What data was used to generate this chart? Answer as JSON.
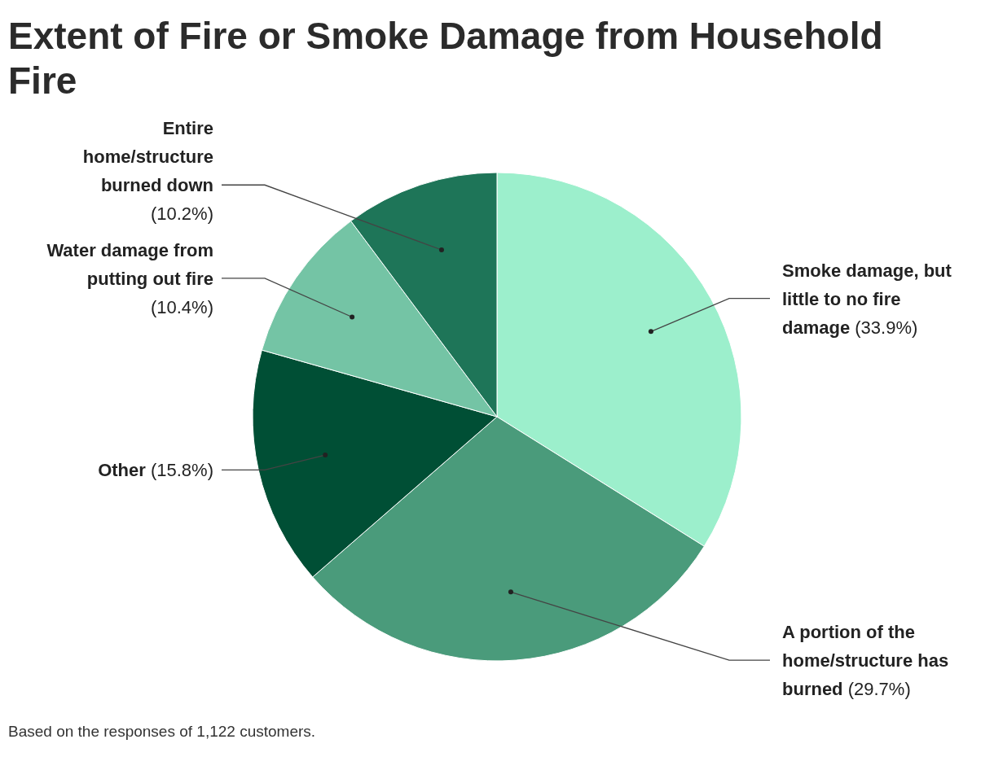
{
  "chart_data": {
    "type": "pie",
    "title": "Extent of Fire or Smoke Damage from Household Fire",
    "categories": [
      "Smoke damage, but little to no fire damage",
      "A portion of the home/structure has burned",
      "Other",
      "Water damage from putting out fire",
      "Entire home/structure burned down"
    ],
    "values": [
      33.9,
      29.7,
      15.8,
      10.4,
      10.2
    ],
    "value_labels": [
      "(33.9%)",
      "(29.7%)",
      "(15.8%)",
      "(10.4%)",
      "(10.2%)"
    ],
    "colors": [
      "#9cefcc",
      "#4a9b7b",
      "#004f35",
      "#74c4a5",
      "#1e7558"
    ],
    "annotations": [
      "Based on the responses of 1,122 customers."
    ]
  }
}
